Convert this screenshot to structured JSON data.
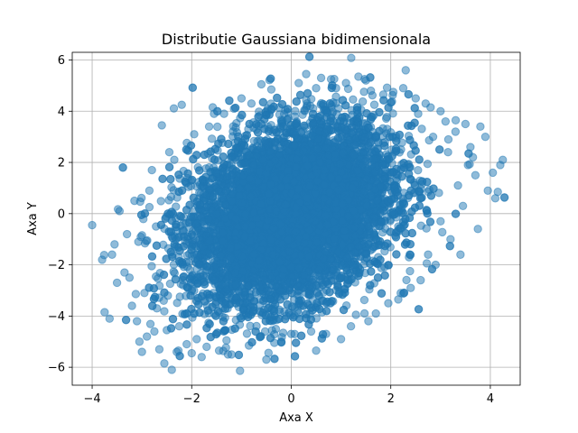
{
  "chart_data": {
    "type": "scatter",
    "title": "Distributie Gaussiana bidimensionala",
    "xlabel": "Axa X",
    "ylabel": "Axa Y",
    "xlim": [
      -4.4,
      4.6
    ],
    "ylim": [
      -6.7,
      6.3
    ],
    "xticks": [
      -4,
      -2,
      0,
      2,
      4
    ],
    "yticks": [
      -6,
      -4,
      -2,
      0,
      2,
      4,
      6
    ],
    "xtick_labels": [
      "−4",
      "−2",
      "0",
      "2",
      "4"
    ],
    "ytick_labels": [
      "−6",
      "−4",
      "−2",
      "0",
      "2",
      "4",
      "6"
    ],
    "grid": true,
    "marker": "circle",
    "alpha": 0.5,
    "colors": {
      "points": "#1f77b4",
      "grid": "#b0b0b0",
      "axes": "#000000",
      "background": "#ffffff"
    },
    "distribution": {
      "kind": "bivariate normal",
      "mean": [
        0,
        0
      ],
      "covariance": [
        [
          1,
          0.5
        ],
        [
          0.5,
          3
        ]
      ],
      "n_points": 10000
    },
    "series": [
      {
        "points": [
          [
            -4.0,
            -0.45
          ],
          [
            -3.8,
            -1.8
          ],
          [
            -3.75,
            -3.85
          ],
          [
            -3.65,
            -4.1
          ],
          [
            -3.6,
            -1.6
          ],
          [
            -3.5,
            -2.7
          ],
          [
            -3.45,
            0.1
          ],
          [
            -3.3,
            -0.8
          ],
          [
            -3.2,
            -3.6
          ],
          [
            -3.1,
            -4.2
          ],
          [
            -3.05,
            -5.0
          ],
          [
            -3.0,
            -5.4
          ],
          [
            -2.9,
            -4.8
          ],
          [
            -2.85,
            0.9
          ],
          [
            -2.75,
            -4.6
          ],
          [
            -2.65,
            -5.3
          ],
          [
            -2.55,
            -5.85
          ],
          [
            -2.5,
            -4.55
          ],
          [
            -2.4,
            -6.1
          ],
          [
            -2.6,
            3.45
          ],
          [
            -2.45,
            2.4
          ],
          [
            -2.3,
            -5.4
          ],
          [
            -2.2,
            4.25
          ],
          [
            -2.1,
            -5.1
          ],
          [
            -2.0,
            -5.45
          ],
          [
            -1.9,
            -4.9
          ],
          [
            -1.8,
            -5.6
          ],
          [
            -1.7,
            -5.2
          ],
          [
            -1.55,
            3.9
          ],
          [
            -1.45,
            -5.35
          ],
          [
            -1.3,
            -4.95
          ],
          [
            -1.2,
            -5.5
          ],
          [
            -1.0,
            4.5
          ],
          [
            -0.85,
            -5.15
          ],
          [
            -0.5,
            -5.7
          ],
          [
            -0.6,
            5.05
          ],
          [
            -0.4,
            4.85
          ],
          [
            -0.2,
            -5.0
          ],
          [
            0.0,
            -4.7
          ],
          [
            0.15,
            5.1
          ],
          [
            0.3,
            5.45
          ],
          [
            0.4,
            -4.6
          ],
          [
            0.5,
            -5.35
          ],
          [
            0.6,
            5.3
          ],
          [
            0.7,
            -4.7
          ],
          [
            0.8,
            5.25
          ],
          [
            0.9,
            4.9
          ],
          [
            1.0,
            -4.9
          ],
          [
            1.1,
            5.1
          ],
          [
            1.2,
            -4.4
          ],
          [
            1.3,
            -3.95
          ],
          [
            1.35,
            5.35
          ],
          [
            1.5,
            5.2
          ],
          [
            1.6,
            4.8
          ],
          [
            1.7,
            -3.9
          ],
          [
            1.85,
            4.65
          ],
          [
            1.95,
            -3.5
          ],
          [
            2.05,
            4.75
          ],
          [
            2.15,
            -3.35
          ],
          [
            2.25,
            4.9
          ],
          [
            2.3,
            5.6
          ],
          [
            2.4,
            -2.9
          ],
          [
            2.5,
            4.5
          ],
          [
            2.6,
            -2.6
          ],
          [
            2.7,
            4.3
          ],
          [
            2.8,
            4.15
          ],
          [
            2.9,
            -2.0
          ],
          [
            3.0,
            4.0
          ],
          [
            3.1,
            3.6
          ],
          [
            3.2,
            -1.0
          ],
          [
            3.3,
            3.2
          ],
          [
            3.4,
            -1.6
          ],
          [
            3.5,
            3.5
          ],
          [
            3.55,
            1.9
          ],
          [
            3.6,
            2.6
          ],
          [
            3.7,
            1.5
          ],
          [
            3.75,
            -0.6
          ],
          [
            3.8,
            3.4
          ],
          [
            3.9,
            3.0
          ],
          [
            4.05,
            1.6
          ],
          [
            4.1,
            0.6
          ],
          [
            4.15,
            0.85
          ],
          [
            4.2,
            1.9
          ],
          [
            4.25,
            2.1
          ],
          [
            3.95,
            0.9
          ],
          [
            3.35,
            1.1
          ],
          [
            3.0,
            -0.3
          ],
          [
            2.85,
            3.0
          ],
          [
            -3.35,
            -2.3
          ],
          [
            -3.15,
            0.5
          ],
          [
            -2.95,
            -3.1
          ],
          [
            -2.8,
            1.7
          ],
          [
            -2.7,
            -3.7
          ],
          [
            -2.35,
            2.1
          ],
          [
            -2.25,
            -4.4
          ],
          [
            -1.95,
            3.1
          ],
          [
            -1.65,
            3.4
          ],
          [
            -1.35,
            3.9
          ],
          [
            -1.15,
            4.1
          ],
          [
            -0.8,
            4.3
          ],
          [
            0.5,
            4.9
          ],
          [
            1.55,
            -4.2
          ],
          [
            2.2,
            -3.1
          ],
          [
            2.55,
            3.9
          ],
          [
            2.75,
            -1.6
          ],
          [
            3.15,
            2.4
          ],
          [
            3.45,
            0.3
          ],
          [
            3.65,
            2.2
          ],
          [
            -3.55,
            -1.2
          ],
          [
            -3.25,
            -2.5
          ]
        ]
      }
    ]
  }
}
